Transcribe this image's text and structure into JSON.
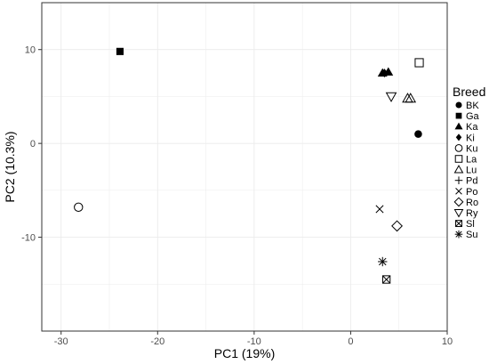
{
  "chart_data": {
    "type": "scatter",
    "title": "",
    "xlabel": "PC1 (19%)",
    "ylabel": "PC2 (10.3%)",
    "xlim": [
      -32,
      10
    ],
    "ylim": [
      -20,
      15
    ],
    "xticks": [
      -30,
      -20,
      -10,
      0,
      10
    ],
    "yticks": [
      -10,
      0,
      10
    ],
    "grid": true,
    "legend": {
      "title": "Breed",
      "placement": "right",
      "entries": [
        {
          "label": "BK",
          "shape": "filled-circle"
        },
        {
          "label": "Ga",
          "shape": "filled-square"
        },
        {
          "label": "Ka",
          "shape": "filled-triangle"
        },
        {
          "label": "Ki",
          "shape": "filled-diamond"
        },
        {
          "label": "Ku",
          "shape": "open-circle"
        },
        {
          "label": "La",
          "shape": "open-square"
        },
        {
          "label": "Lu",
          "shape": "open-triangle"
        },
        {
          "label": "Pd",
          "shape": "plus"
        },
        {
          "label": "Po",
          "shape": "cross"
        },
        {
          "label": "Ro",
          "shape": "open-diamond"
        },
        {
          "label": "Ry",
          "shape": "open-triangle-down"
        },
        {
          "label": "Sl",
          "shape": "square-cross"
        },
        {
          "label": "Su",
          "shape": "asterisk"
        }
      ]
    },
    "series": [
      {
        "name": "BK",
        "points": [
          [
            7.0,
            1.0
          ]
        ]
      },
      {
        "name": "Ga",
        "points": [
          [
            -23.9,
            9.8
          ]
        ]
      },
      {
        "name": "Ka",
        "points": [
          [
            3.3,
            7.5
          ],
          [
            3.9,
            7.6
          ]
        ]
      },
      {
        "name": "Ki",
        "points": [
          [
            3.5,
            7.5
          ]
        ]
      },
      {
        "name": "Ku",
        "points": [
          [
            -28.2,
            -6.8
          ]
        ]
      },
      {
        "name": "La",
        "points": [
          [
            7.1,
            8.6
          ]
        ]
      },
      {
        "name": "Lu",
        "points": [
          [
            5.9,
            4.8
          ],
          [
            6.2,
            4.8
          ]
        ]
      },
      {
        "name": "Pd",
        "points": []
      },
      {
        "name": "Po",
        "points": [
          [
            3.0,
            -7.0
          ]
        ]
      },
      {
        "name": "Ro",
        "points": [
          [
            4.8,
            -8.8
          ]
        ]
      },
      {
        "name": "Ry",
        "points": [
          [
            4.2,
            5.0
          ]
        ]
      },
      {
        "name": "Sl",
        "points": [
          [
            3.7,
            -14.5
          ]
        ]
      },
      {
        "name": "Su",
        "points": [
          [
            3.3,
            -12.6
          ]
        ]
      }
    ],
    "colors": {
      "marker": "#000000",
      "grid": "#ebebeb",
      "panel_border": "#333333"
    }
  }
}
